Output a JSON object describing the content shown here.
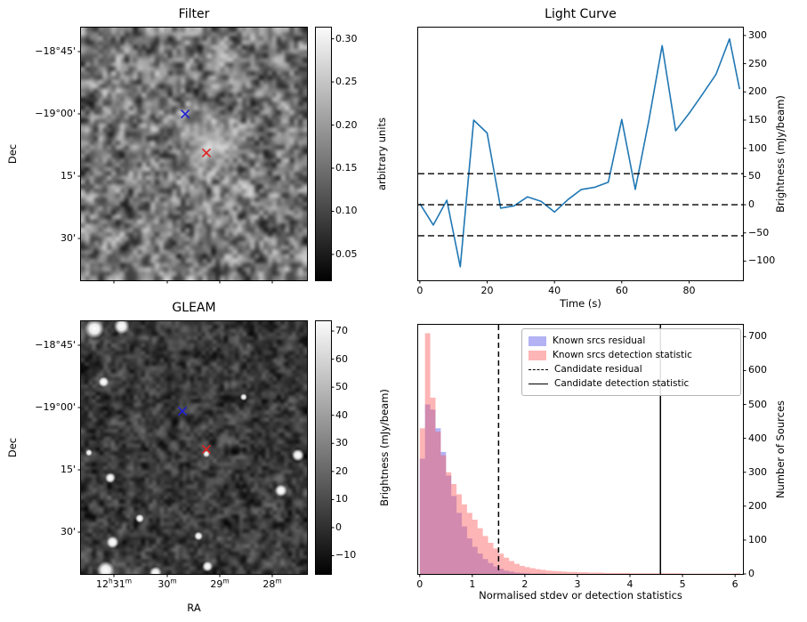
{
  "chart_data": [
    {
      "id": "filter",
      "type": "heatmap",
      "title": "Filter",
      "ylabel": "Dec",
      "yticks": [
        {
          "label": "−18°45'",
          "pos": 0.095
        },
        {
          "label": "−19°00'",
          "pos": 0.3415
        },
        {
          "label": "15'",
          "pos": 0.588
        },
        {
          "label": "30'",
          "pos": 0.8345
        }
      ],
      "xticks": [
        {
          "label": "",
          "pos": 0.1457
        },
        {
          "label": "",
          "pos": 0.3819
        },
        {
          "label": "",
          "pos": 0.6142
        },
        {
          "label": "",
          "pos": 0.8465
        }
      ],
      "colorbar": {
        "label": "arbitrary units",
        "vmin": 0.02,
        "vmax": 0.313,
        "ticks": [
          {
            "label": "0.30",
            "v": 0.3
          },
          {
            "label": "0.25",
            "v": 0.25
          },
          {
            "label": "0.20",
            "v": 0.2
          },
          {
            "label": "0.15",
            "v": 0.15
          },
          {
            "label": "0.10",
            "v": 0.1
          },
          {
            "label": "0.05",
            "v": 0.05
          }
        ]
      },
      "markers": [
        {
          "shape": "x",
          "color": "#1f1fd6",
          "x": 0.461,
          "y": 0.342
        },
        {
          "shape": "x",
          "color": "#e02020",
          "x": 0.555,
          "y": 0.496
        }
      ],
      "style": {
        "noise_lo": 20,
        "noise_hi": 215,
        "bright_patch": {
          "x": 0.57,
          "y": 0.46,
          "r": 0.17
        }
      }
    },
    {
      "id": "light_curve",
      "type": "line",
      "title": "Light Curve",
      "xlabel": "Time (s)",
      "ylabel": "Brightness (mJy/beam)",
      "xlim": [
        -0.5,
        96
      ],
      "ylim": [
        -134,
        314
      ],
      "xticks": [
        0,
        20,
        40,
        60,
        80
      ],
      "yticks": [
        -100,
        -50,
        0,
        50,
        100,
        150,
        200,
        250,
        300
      ],
      "line_color": "#1f77b4",
      "x": [
        0,
        4,
        8,
        12,
        16,
        20,
        24,
        28,
        32,
        36,
        40,
        44,
        48,
        52,
        56,
        60,
        64,
        68,
        72,
        76,
        80,
        84,
        88,
        92,
        95
      ],
      "y": [
        2,
        -36,
        8,
        -110,
        150,
        127,
        -6,
        -2,
        14,
        6,
        -13,
        9,
        27,
        31,
        40,
        151,
        27,
        148,
        282,
        131,
        162,
        196,
        231,
        294,
        205
      ],
      "hlines": [
        {
          "y": 55,
          "style": "dashed"
        },
        {
          "y": 0,
          "style": "dashed"
        },
        {
          "y": -55,
          "style": "dashed"
        }
      ]
    },
    {
      "id": "gleam",
      "type": "heatmap",
      "title": "GLEAM",
      "xlabel": "RA",
      "ylabel": "Dec",
      "yticks": [
        {
          "label": "−18°45'",
          "pos": 0.095
        },
        {
          "label": "−19°00'",
          "pos": 0.3415
        },
        {
          "label": "15'",
          "pos": 0.588
        },
        {
          "label": "30'",
          "pos": 0.8345
        }
      ],
      "xticks": [
        {
          "label": "12h31m",
          "pos": 0.1457
        },
        {
          "label": "30m",
          "pos": 0.3819
        },
        {
          "label": "29m",
          "pos": 0.6142
        },
        {
          "label": "28m",
          "pos": 0.8465
        }
      ],
      "colorbar": {
        "label": "Brightness (mJy/beam)",
        "vmin": -16.5,
        "vmax": 73.5,
        "ticks": [
          {
            "label": "70",
            "v": 70
          },
          {
            "label": "60",
            "v": 60
          },
          {
            "label": "50",
            "v": 50
          },
          {
            "label": "40",
            "v": 40
          },
          {
            "label": "30",
            "v": 30
          },
          {
            "label": "20",
            "v": 20
          },
          {
            "label": "10",
            "v": 10
          },
          {
            "label": "0",
            "v": 0
          },
          {
            "label": "−10",
            "v": -10
          }
        ]
      },
      "markers": [
        {
          "shape": "x",
          "color": "#1f1fd6",
          "x": 0.449,
          "y": 0.356
        },
        {
          "shape": "x",
          "color": "#e02020",
          "x": 0.555,
          "y": 0.507
        }
      ],
      "sources": [
        [
          0.06,
          0.03,
          11
        ],
        [
          0.18,
          0.02,
          9
        ],
        [
          0.1,
          0.24,
          6
        ],
        [
          0.035,
          0.52,
          4
        ],
        [
          0.13,
          0.62,
          6
        ],
        [
          0.72,
          0.3,
          4
        ],
        [
          0.96,
          0.53,
          7
        ],
        [
          0.885,
          0.67,
          7
        ],
        [
          0.26,
          0.78,
          5
        ],
        [
          0.14,
          0.875,
          7
        ],
        [
          0.52,
          0.85,
          5
        ],
        [
          0.11,
          0.985,
          10
        ],
        [
          0.33,
          0.995,
          7
        ],
        [
          0.56,
          0.97,
          6
        ],
        [
          0.555,
          0.525,
          4
        ]
      ],
      "style": {
        "noise_lo": 0,
        "noise_hi": 115
      }
    },
    {
      "id": "histogram",
      "type": "bar",
      "xlabel": "Normalised stdev or detection statistics",
      "ylabel": "Number of Sources",
      "xlim": [
        -0.03,
        6.15
      ],
      "ylim": [
        0,
        735
      ],
      "xticks": [
        0,
        1,
        2,
        3,
        4,
        5,
        6
      ],
      "yticks": [
        0,
        100,
        200,
        300,
        400,
        500,
        600,
        700
      ],
      "bin_width": 0.1,
      "series": [
        {
          "name": "Known srcs residual",
          "color": "rgba(85,85,230,0.45)",
          "values": [
            340,
            500,
            485,
            430,
            360,
            290,
            230,
            180,
            140,
            105,
            80,
            60,
            44,
            32,
            22,
            15,
            10,
            7,
            4,
            3,
            2,
            1,
            1,
            1,
            0,
            0,
            0,
            0,
            0,
            0,
            0,
            0,
            0,
            0,
            0,
            0,
            0,
            0,
            0,
            0,
            0,
            0,
            0,
            0,
            0,
            0,
            0,
            0,
            0,
            0,
            0,
            0,
            0,
            0,
            0,
            0,
            0,
            0,
            0,
            0,
            0
          ]
        },
        {
          "name": "Known srcs detection statistic",
          "color": "rgba(250,90,90,0.45)",
          "values": [
            430,
            710,
            520,
            420,
            350,
            300,
            265,
            235,
            205,
            180,
            160,
            135,
            112,
            92,
            75,
            60,
            48,
            38,
            30,
            24,
            20,
            17,
            14,
            12,
            10,
            9,
            8,
            7,
            6,
            6,
            5,
            5,
            4,
            4,
            4,
            3,
            3,
            3,
            3,
            3,
            2,
            2,
            2,
            2,
            2,
            2,
            2,
            2,
            2,
            2,
            1,
            1,
            1,
            1,
            1,
            1,
            1,
            1,
            1,
            1,
            2
          ]
        }
      ],
      "vlines": [
        {
          "name": "Candidate residual",
          "x": 1.5,
          "style": "dashed"
        },
        {
          "name": "Candidate detection statistic",
          "x": 4.58,
          "style": "solid"
        }
      ]
    }
  ]
}
